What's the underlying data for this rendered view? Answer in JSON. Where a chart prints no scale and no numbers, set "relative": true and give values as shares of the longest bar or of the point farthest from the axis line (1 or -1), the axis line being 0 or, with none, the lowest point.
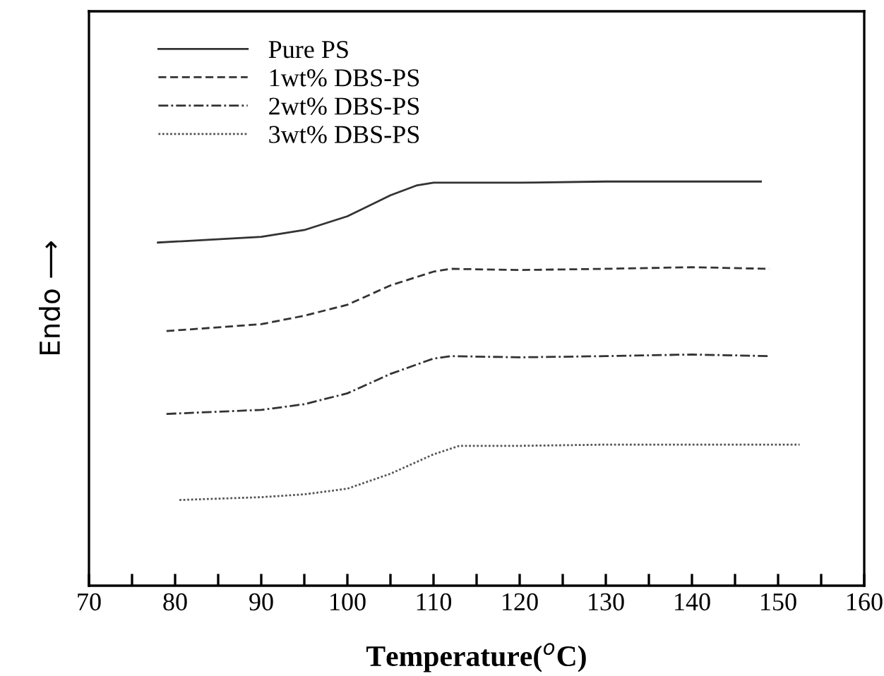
{
  "chart_data": {
    "type": "line",
    "xlabel": "Temperature($^{o}$C)",
    "ylabel": "Endo ⟶",
    "relative": true,
    "xlim": [
      70,
      160
    ],
    "xticks": [
      70,
      {
        "value": 75,
        "label": null
      },
      80,
      {
        "value": 85,
        "label": null
      },
      90,
      {
        "value": 95,
        "label": null
      },
      100,
      {
        "value": 105,
        "label": null
      },
      110,
      {
        "value": 115,
        "label": null
      },
      120,
      {
        "value": 125,
        "label": null
      },
      130,
      {
        "value": 135,
        "label": null
      },
      140,
      {
        "value": 145,
        "label": null
      },
      150,
      {
        "value": 155,
        "label": null
      },
      160
    ],
    "legend": "top left",
    "grid": false,
    "marker": "none",
    "series": [
      {
        "name": "Pure PS",
        "color": "#333333",
        "line_style": "solid",
        "x": [
          78,
          90,
          95,
          100,
          105,
          108,
          110,
          120,
          130,
          140,
          148
        ],
        "values": [
          0.849,
          0.863,
          0.88,
          0.914,
          0.966,
          0.99,
          0.997,
          0.997,
          1.0,
          1.0,
          1.0
        ]
      },
      {
        "name": "1wt% DBS-PS",
        "color": "#333333",
        "line_style": "dashed",
        "x": [
          79,
          90,
          95,
          100,
          105,
          110,
          112,
          120,
          130,
          140,
          149
        ],
        "values": [
          0.63,
          0.647,
          0.668,
          0.695,
          0.743,
          0.777,
          0.784,
          0.781,
          0.784,
          0.788,
          0.784
        ]
      },
      {
        "name": "2wt% DBS-PS",
        "color": "#333333",
        "line_style": "dashdot",
        "x": [
          79,
          90,
          95,
          100,
          105,
          110,
          112,
          120,
          130,
          140,
          149
        ],
        "values": [
          0.425,
          0.435,
          0.449,
          0.476,
          0.524,
          0.562,
          0.568,
          0.565,
          0.568,
          0.572,
          0.568
        ]
      },
      {
        "name": "3wt% DBS-PS",
        "color": "#555555",
        "line_style": "dotted",
        "x": [
          80.5,
          90,
          95,
          100,
          105,
          110,
          113,
          120,
          130,
          140,
          152.5
        ],
        "values": [
          0.212,
          0.219,
          0.226,
          0.24,
          0.277,
          0.325,
          0.346,
          0.346,
          0.349,
          0.349,
          0.349
        ]
      }
    ]
  }
}
